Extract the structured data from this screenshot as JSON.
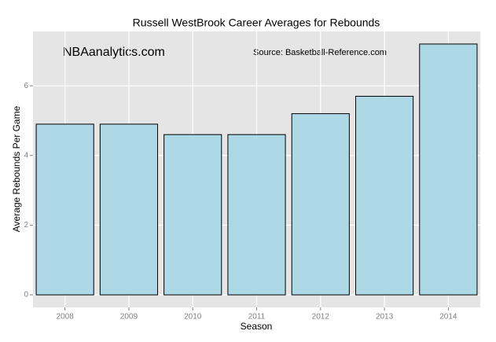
{
  "chart_data": {
    "type": "bar",
    "title": "Russell WestBrook Career Averages for Rebounds",
    "x_label": "Season",
    "y_label": "Average Rebounds Per Game",
    "annotations": [
      "NBAanalytics.com",
      "Source: Basketball-Reference.com"
    ],
    "categories": [
      "2008",
      "2009",
      "2010",
      "2011",
      "2012",
      "2013",
      "2014"
    ],
    "values": [
      4.9,
      4.9,
      4.6,
      4.6,
      5.2,
      5.7,
      7.2
    ],
    "color": "#add8e6",
    "edge_color": "#000000",
    "ylim": [
      -0.36,
      7.56
    ],
    "yticks": [
      0,
      2,
      4,
      6
    ],
    "grid": true
  }
}
